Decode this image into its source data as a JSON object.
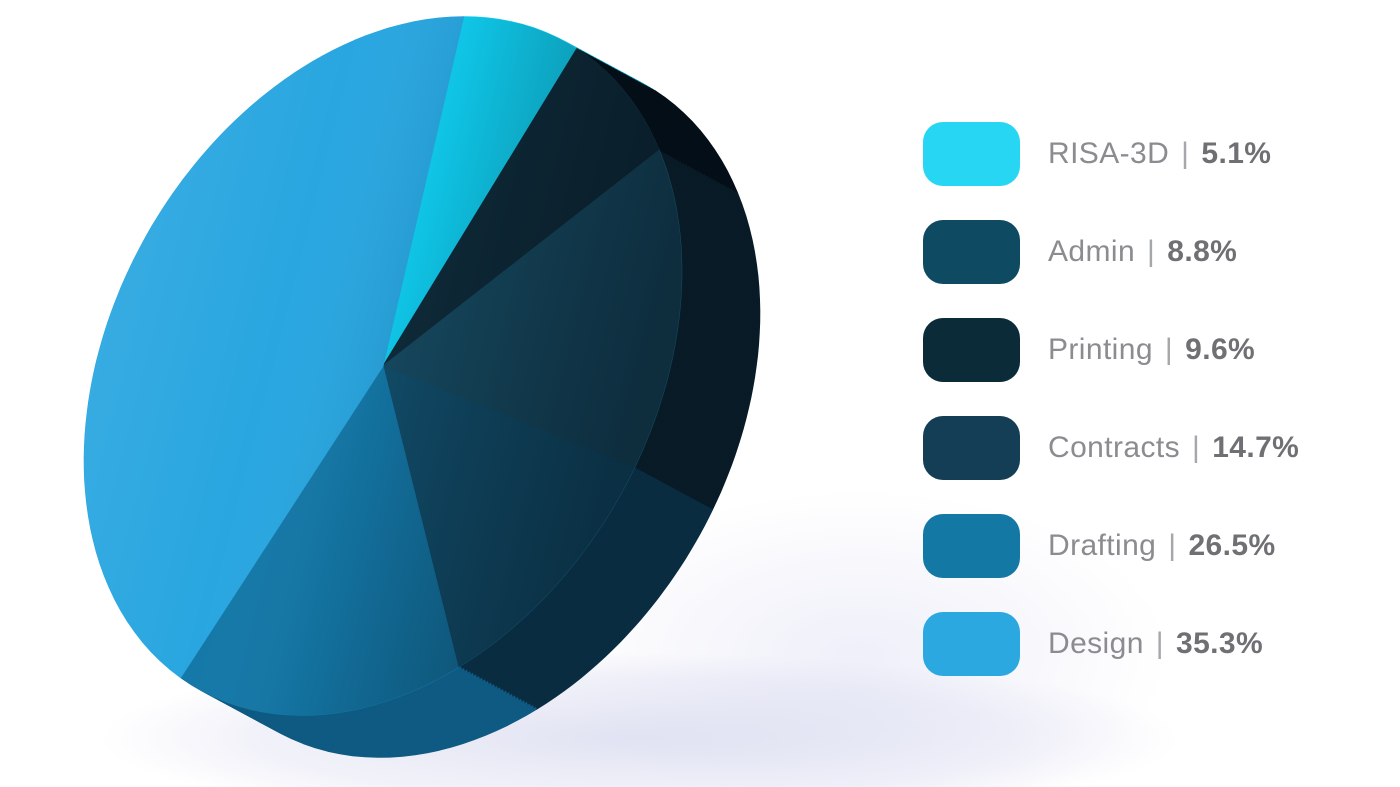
{
  "canvas": {
    "background": "#ffffff"
  },
  "chart_data": {
    "type": "pie",
    "style": "3d-tilted-disc",
    "title": "",
    "legend_position": "right",
    "total_pct": 100.0,
    "slices": [
      {
        "label": "RISA-3D",
        "value": 5.1,
        "display": "5.1%",
        "legend_color": "#27d6f3",
        "face_color": "#10cff2",
        "side_color": "#0aa5c5"
      },
      {
        "label": "Admin",
        "value": 8.8,
        "display": "8.8%",
        "legend_color": "#0f4a63",
        "face_color": "#0f2c3c",
        "side_color": "#050f18"
      },
      {
        "label": "Printing",
        "value": 9.6,
        "display": "9.6%",
        "legend_color": "#0c2b39",
        "face_color": "#174b63",
        "side_color": "#081b27"
      },
      {
        "label": "Contracts",
        "value": 14.7,
        "display": "14.7%",
        "legend_color": "#143e55",
        "face_color": "#124e6c",
        "side_color": "#0a2c41"
      },
      {
        "label": "Drafting",
        "value": 26.5,
        "display": "26.5%",
        "legend_color": "#1478a5",
        "face_color": "#1478a8",
        "side_color": "#0e5a82"
      },
      {
        "label": "Design",
        "value": 35.3,
        "display": "35.3%",
        "legend_color": "#2aa8df",
        "face_color": "#29a6e0",
        "side_color": "#116690"
      }
    ],
    "render_hints": {
      "face_angles_deg": [
        [
          -77,
          -58.6
        ],
        [
          -58.6,
          -38
        ],
        [
          -38,
          22
        ],
        [
          22,
          76
        ],
        [
          76,
          123
        ],
        [
          123,
          283
        ]
      ],
      "note": "observed screen-space slice boundaries of the 3D render, clockwise from top"
    }
  },
  "legend": {
    "separator": "|"
  }
}
